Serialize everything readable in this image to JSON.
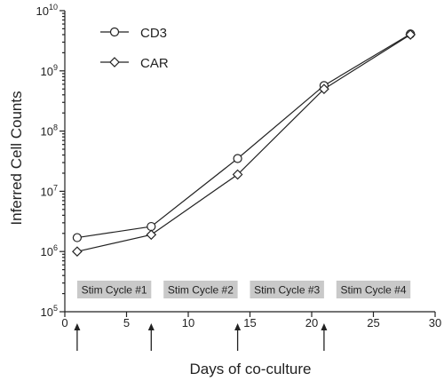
{
  "chart_data": {
    "type": "line",
    "title": "",
    "xlabel": "Days of co-culture",
    "ylabel": "Inferred Cell Counts",
    "y_scale": "log",
    "xlim": [
      0,
      30
    ],
    "ylim": [
      100000,
      10000000000
    ],
    "x_ticks": [
      0,
      5,
      10,
      15,
      20,
      25,
      30
    ],
    "y_tick_labels": [
      {
        "value": 100000,
        "base": "10",
        "exp": "5"
      },
      {
        "value": 1000000,
        "base": "10",
        "exp": "6"
      },
      {
        "value": 10000000,
        "base": "10",
        "exp": "7"
      },
      {
        "value": 100000000,
        "base": "10",
        "exp": "8"
      },
      {
        "value": 1000000000,
        "base": "10",
        "exp": "9"
      },
      {
        "value": 10000000000,
        "base": "10",
        "exp": "10"
      }
    ],
    "grid": false,
    "legend_position": "top-left",
    "series": [
      {
        "name": "CD3",
        "marker": "circle",
        "x": [
          1,
          7,
          14,
          21,
          28
        ],
        "y": [
          1700000,
          2600000,
          35000000,
          570000000,
          4100000000
        ]
      },
      {
        "name": "CAR",
        "marker": "diamond",
        "x": [
          1,
          7,
          14,
          21,
          28
        ],
        "y": [
          1000000,
          1900000,
          19000000,
          500000000,
          4000000000
        ]
      }
    ],
    "annotations": {
      "stim_cycles": [
        {
          "label": "Stim Cycle #1",
          "x_start": 1,
          "x_end": 7
        },
        {
          "label": "Stim Cycle #2",
          "x_start": 8,
          "x_end": 14
        },
        {
          "label": "Stim Cycle #3",
          "x_start": 15,
          "x_end": 21
        },
        {
          "label": "Stim Cycle #4",
          "x_start": 22,
          "x_end": 28
        }
      ],
      "arrows_at_days": [
        1,
        7,
        14,
        21
      ]
    }
  }
}
